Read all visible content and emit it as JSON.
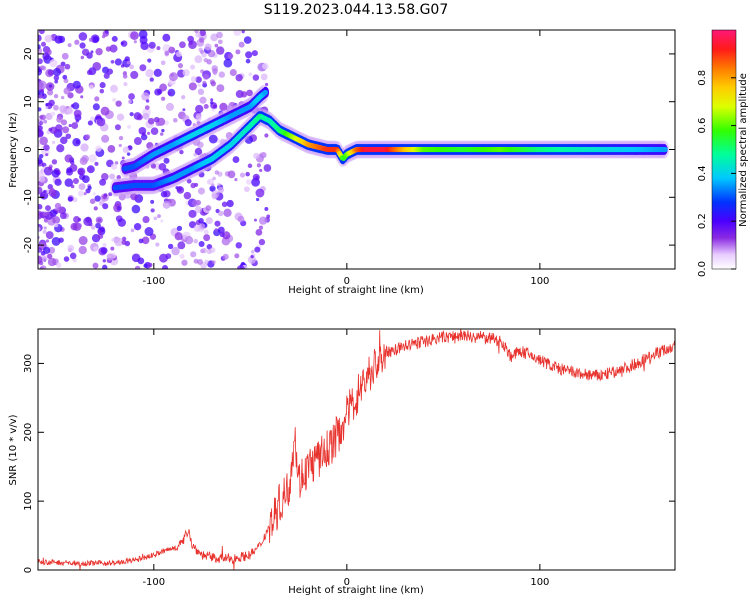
{
  "figure_title": "S119.2023.044.13.58.G07",
  "chart_data": [
    {
      "type": "heatmap",
      "xlabel": "Height of straight line (km)",
      "ylabel": "Frequency (Hz)",
      "xlim": [
        -160,
        170
      ],
      "ylim": [
        -25,
        25
      ],
      "xticks": [
        -100,
        0,
        100
      ],
      "yticks": [
        -20,
        -10,
        0,
        10,
        20
      ],
      "grid": false,
      "colorbar": {
        "label": "Normalized spectral amplitude",
        "range": [
          0,
          1
        ],
        "ticks": [
          0.0,
          0.2,
          0.4,
          0.6,
          0.8
        ],
        "tick_labels": [
          "0.0",
          "0.2",
          "0.4",
          "0.6",
          "0.8"
        ]
      },
      "tracks": [
        {
          "x": [
            -120,
            -110,
            -100,
            -90,
            -80,
            -70,
            -60,
            -50,
            -45,
            -40,
            -35,
            -30,
            -25,
            -20,
            -15,
            -10,
            -5,
            -2,
            0,
            5,
            10,
            20,
            40,
            60,
            80,
            100,
            120,
            140,
            165
          ],
          "y": [
            -8,
            -7.5,
            -7.5,
            -6,
            -4,
            -2,
            1,
            5,
            7,
            6,
            4,
            3,
            2,
            1,
            0.5,
            0,
            0,
            -2,
            -1,
            0,
            0,
            0,
            0,
            0,
            0,
            0,
            0,
            0,
            0
          ],
          "amp": [
            0.3,
            0.3,
            0.3,
            0.35,
            0.35,
            0.4,
            0.4,
            0.45,
            0.5,
            0.45,
            0.5,
            0.6,
            0.7,
            0.8,
            0.85,
            0.9,
            0.9,
            0.55,
            0.6,
            0.85,
            0.95,
            0.95,
            0.6,
            0.55,
            0.6,
            0.5,
            0.45,
            0.4,
            0.35
          ]
        },
        {
          "x": [
            -115,
            -110,
            -100,
            -90,
            -80,
            -70,
            -60,
            -50,
            -45,
            -42
          ],
          "y": [
            -4,
            -3.5,
            -1,
            1,
            3,
            5,
            7,
            9,
            11,
            12
          ],
          "amp": [
            0.3,
            0.3,
            0.35,
            0.35,
            0.4,
            0.4,
            0.35,
            0.35,
            0.4,
            0.35
          ]
        }
      ]
    },
    {
      "type": "line",
      "xlabel": "Height of straight line (km)",
      "ylabel": "SNR (10 * v/v)",
      "xlim": [
        -160,
        170
      ],
      "ylim": [
        0,
        350
      ],
      "xticks": [
        -100,
        0,
        100
      ],
      "yticks": [
        0,
        100,
        200,
        300
      ],
      "grid": false,
      "color": "#e8322d",
      "series": [
        {
          "x": [
            -160,
            -140,
            -120,
            -110,
            -100,
            -90,
            -85,
            -82,
            -80,
            -75,
            -70,
            -60,
            -50,
            -45,
            -40,
            -35,
            -30,
            -27,
            -25,
            -20,
            -15,
            -10,
            -5,
            0,
            10,
            20,
            30,
            40,
            50,
            60,
            70,
            80,
            85,
            90,
            100,
            110,
            120,
            130,
            140,
            150,
            160,
            170
          ],
          "values": [
            12,
            10,
            10,
            14,
            22,
            32,
            40,
            60,
            35,
            22,
            18,
            16,
            22,
            35,
            65,
            95,
            120,
            200,
            130,
            150,
            160,
            175,
            195,
            225,
            280,
            315,
            325,
            332,
            338,
            340,
            338,
            333,
            310,
            318,
            305,
            292,
            285,
            282,
            288,
            300,
            315,
            325
          ]
        }
      ]
    }
  ]
}
